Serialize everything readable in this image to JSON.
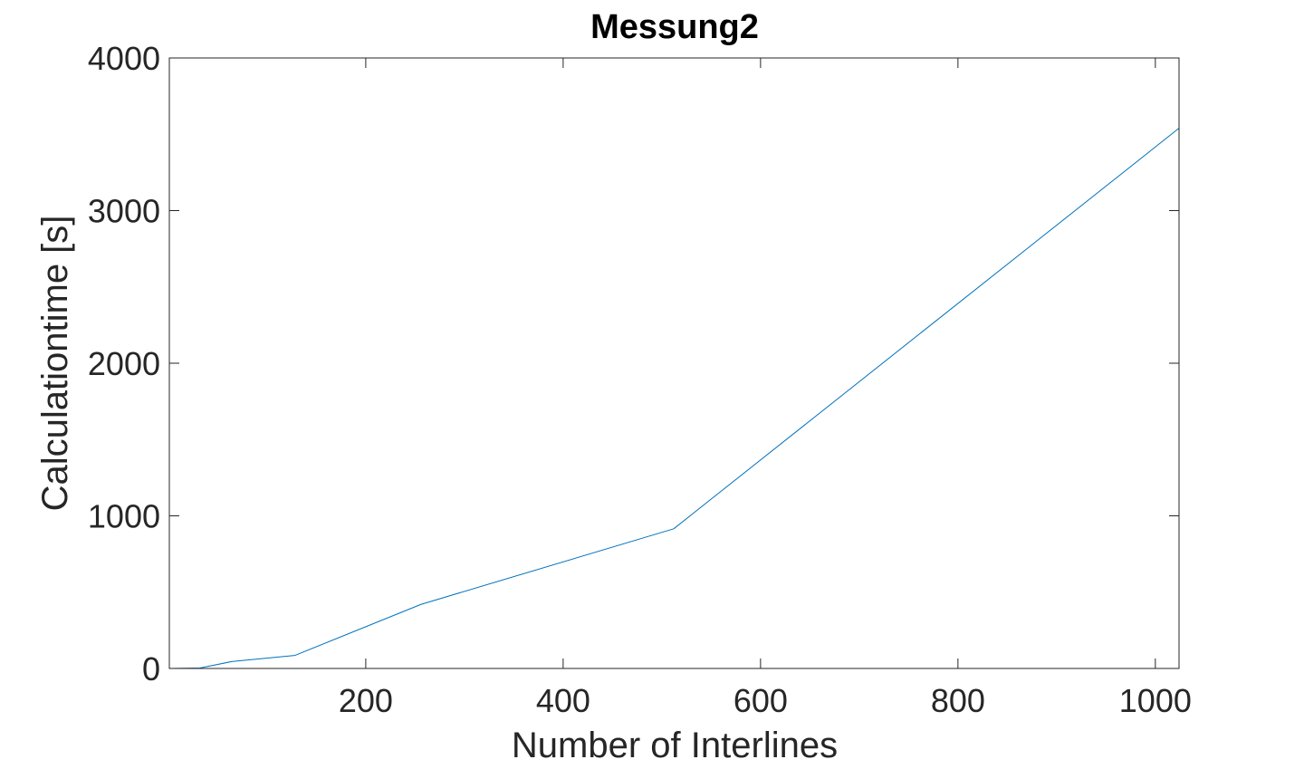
{
  "chart_data": {
    "type": "line",
    "title": "Messung2",
    "xlabel": "Number of Interlines",
    "ylabel": "Calculationtime [s]",
    "xlim": [
      1,
      1024
    ],
    "ylim": [
      0,
      4000
    ],
    "xticks": [
      200,
      400,
      600,
      800,
      1000
    ],
    "yticks": [
      0,
      1000,
      2000,
      3000,
      4000
    ],
    "grid": false,
    "box": true,
    "series": [
      {
        "color": "#0072bd",
        "x": [
          1,
          32,
          64,
          128,
          256,
          512,
          1024
        ],
        "y": [
          0,
          3,
          45,
          85,
          420,
          915,
          3540
        ]
      }
    ]
  }
}
